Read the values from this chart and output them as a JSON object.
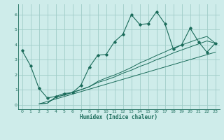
{
  "xlabel": "Humidex (Indice chaleur)",
  "bg_color": "#ceecea",
  "grid_color": "#a0ccc8",
  "line_color": "#1a6b5a",
  "xlim": [
    -0.5,
    23.5
  ],
  "ylim": [
    -0.3,
    6.7
  ],
  "xticks": [
    0,
    1,
    2,
    3,
    4,
    5,
    6,
    7,
    8,
    9,
    10,
    11,
    12,
    13,
    14,
    15,
    16,
    17,
    18,
    19,
    20,
    21,
    22,
    23
  ],
  "yticks": [
    0,
    1,
    2,
    3,
    4,
    5,
    6
  ],
  "main_line_x": [
    0,
    1,
    2,
    3,
    4,
    5,
    6,
    7,
    8,
    9,
    10,
    11,
    12,
    13,
    14,
    15,
    16,
    17,
    18,
    19,
    20,
    21,
    22,
    23
  ],
  "main_line_y": [
    3.6,
    2.6,
    1.1,
    0.45,
    0.55,
    0.75,
    0.8,
    1.3,
    2.5,
    3.3,
    3.35,
    4.2,
    4.7,
    6.0,
    5.35,
    5.4,
    6.2,
    5.4,
    3.7,
    4.0,
    5.1,
    4.2,
    3.5,
    4.1
  ],
  "line2_x": [
    2,
    3,
    4,
    5,
    6,
    7,
    8,
    9,
    10,
    11,
    12,
    13,
    14,
    15,
    16,
    17,
    18,
    19,
    20,
    21,
    22,
    23
  ],
  "line2_y": [
    0.05,
    0.1,
    0.5,
    0.65,
    0.82,
    1.0,
    1.2,
    1.48,
    1.65,
    1.85,
    2.1,
    2.3,
    2.55,
    2.75,
    3.0,
    3.2,
    3.45,
    3.65,
    3.85,
    4.05,
    4.25,
    4.1
  ],
  "line3_x": [
    2,
    3,
    4,
    5,
    6,
    7,
    8,
    9,
    10,
    11,
    12,
    13,
    14,
    15,
    16,
    17,
    18,
    19,
    20,
    21,
    22,
    23
  ],
  "line3_y": [
    0.05,
    0.1,
    0.5,
    0.65,
    0.82,
    1.0,
    1.2,
    1.55,
    1.78,
    1.98,
    2.22,
    2.48,
    2.78,
    3.02,
    3.28,
    3.52,
    3.78,
    3.98,
    4.18,
    4.38,
    4.55,
    4.1
  ],
  "line4_x": [
    2,
    23
  ],
  "line4_y": [
    0.05,
    3.5
  ]
}
